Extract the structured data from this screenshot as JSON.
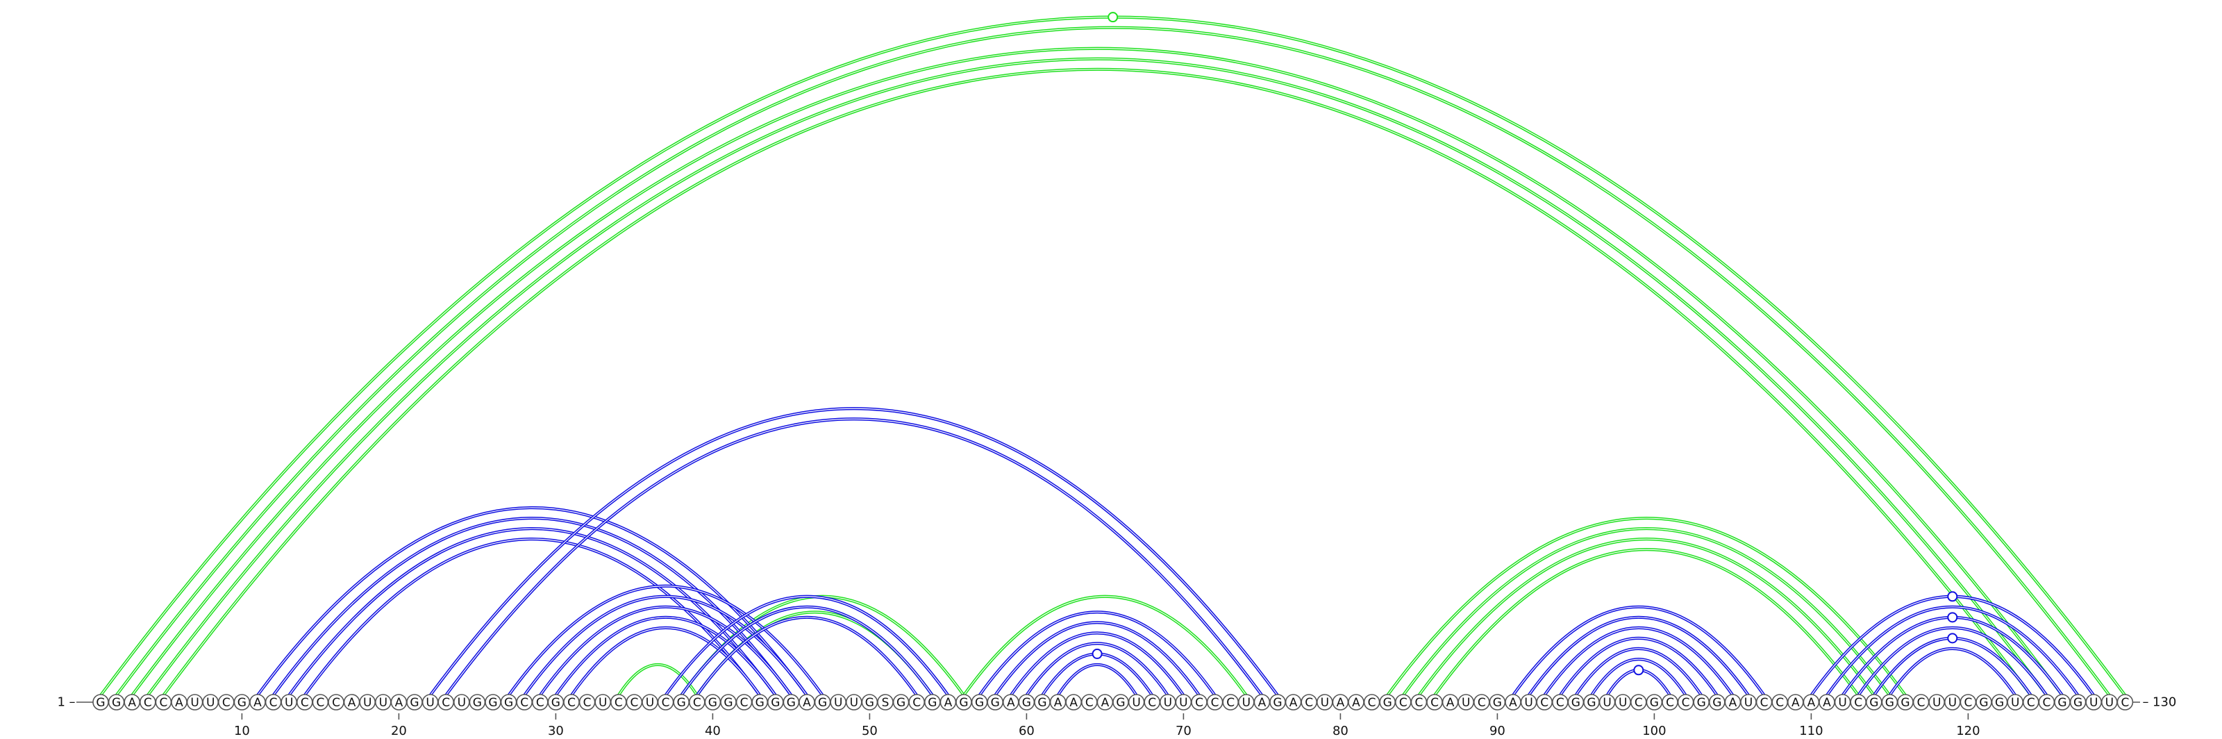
{
  "diagram": {
    "start_label": "1",
    "end_label": "130",
    "sequence": "GGACCAUUCGACUCCCAUUAGUCUGGGCCGCCUCCUCGCGGCGGGAGUUGSGCGAGGGAGGAACAGUCUUCCCUAGACUAACGCCCAUCGAUCCGGUUCGCCGGAUCCAAAUCGGGCUUCGGUCCGGUUC",
    "tick_labels": [
      "10",
      "20",
      "30",
      "40",
      "50",
      "60",
      "70",
      "80",
      "90",
      "100",
      "110",
      "120"
    ],
    "tick_positions": [
      10,
      20,
      30,
      40,
      50,
      60,
      70,
      80,
      90,
      100,
      110,
      120
    ],
    "colors": {
      "blue": "#1010e0",
      "green": "#20e020"
    },
    "arc_groups": [
      {
        "color": "green",
        "strands": [
          [
            1,
            130
          ],
          [
            2,
            129
          ],
          [
            3,
            126
          ],
          [
            4,
            125
          ],
          [
            5,
            124
          ]
        ]
      },
      {
        "color": "green",
        "strands": [
          [
            83,
            116
          ],
          [
            84,
            115
          ],
          [
            85,
            114
          ],
          [
            86,
            113
          ]
        ]
      },
      {
        "color": "green",
        "strands": [
          [
            38,
            56
          ],
          [
            39,
            54
          ]
        ]
      },
      {
        "color": "green",
        "strands": [
          [
            34,
            39
          ]
        ]
      },
      {
        "color": "green",
        "strands": [
          [
            56,
            74
          ]
        ]
      },
      {
        "color": "blue",
        "strands": [
          [
            11,
            46
          ],
          [
            12,
            45
          ],
          [
            13,
            44
          ],
          [
            14,
            43
          ]
        ]
      },
      {
        "color": "blue",
        "strands": [
          [
            22,
            76
          ],
          [
            23,
            75
          ]
        ]
      },
      {
        "color": "blue",
        "strands": [
          [
            27,
            47
          ],
          [
            28,
            46
          ],
          [
            29,
            45
          ],
          [
            30,
            44
          ],
          [
            31,
            43
          ]
        ]
      },
      {
        "color": "blue",
        "strands": [
          [
            37,
            55
          ],
          [
            38,
            54
          ],
          [
            39,
            53
          ]
        ]
      },
      {
        "color": "blue",
        "strands": [
          [
            57,
            72
          ],
          [
            58,
            71
          ],
          [
            59,
            70
          ],
          [
            60,
            69
          ],
          [
            61,
            68
          ],
          [
            62,
            67
          ]
        ]
      },
      {
        "color": "blue",
        "strands": [
          [
            91,
            107
          ],
          [
            92,
            106
          ],
          [
            93,
            105
          ],
          [
            94,
            104
          ],
          [
            95,
            103
          ],
          [
            96,
            102
          ],
          [
            97,
            101
          ]
        ]
      },
      {
        "color": "blue",
        "strands": [
          [
            110,
            128
          ],
          [
            111,
            127
          ],
          [
            112,
            126
          ],
          [
            113,
            125
          ],
          [
            114,
            124
          ],
          [
            115,
            123
          ]
        ]
      }
    ],
    "markers": [
      {
        "pair": [
          1,
          130
        ],
        "color": "green"
      },
      {
        "pair": [
          61,
          68
        ],
        "color": "blue"
      },
      {
        "pair": [
          97,
          101
        ],
        "color": "blue"
      },
      {
        "pair": [
          110,
          128
        ],
        "color": "blue"
      },
      {
        "pair": [
          112,
          126
        ],
        "color": "blue"
      },
      {
        "pair": [
          114,
          124
        ],
        "color": "blue"
      }
    ]
  }
}
